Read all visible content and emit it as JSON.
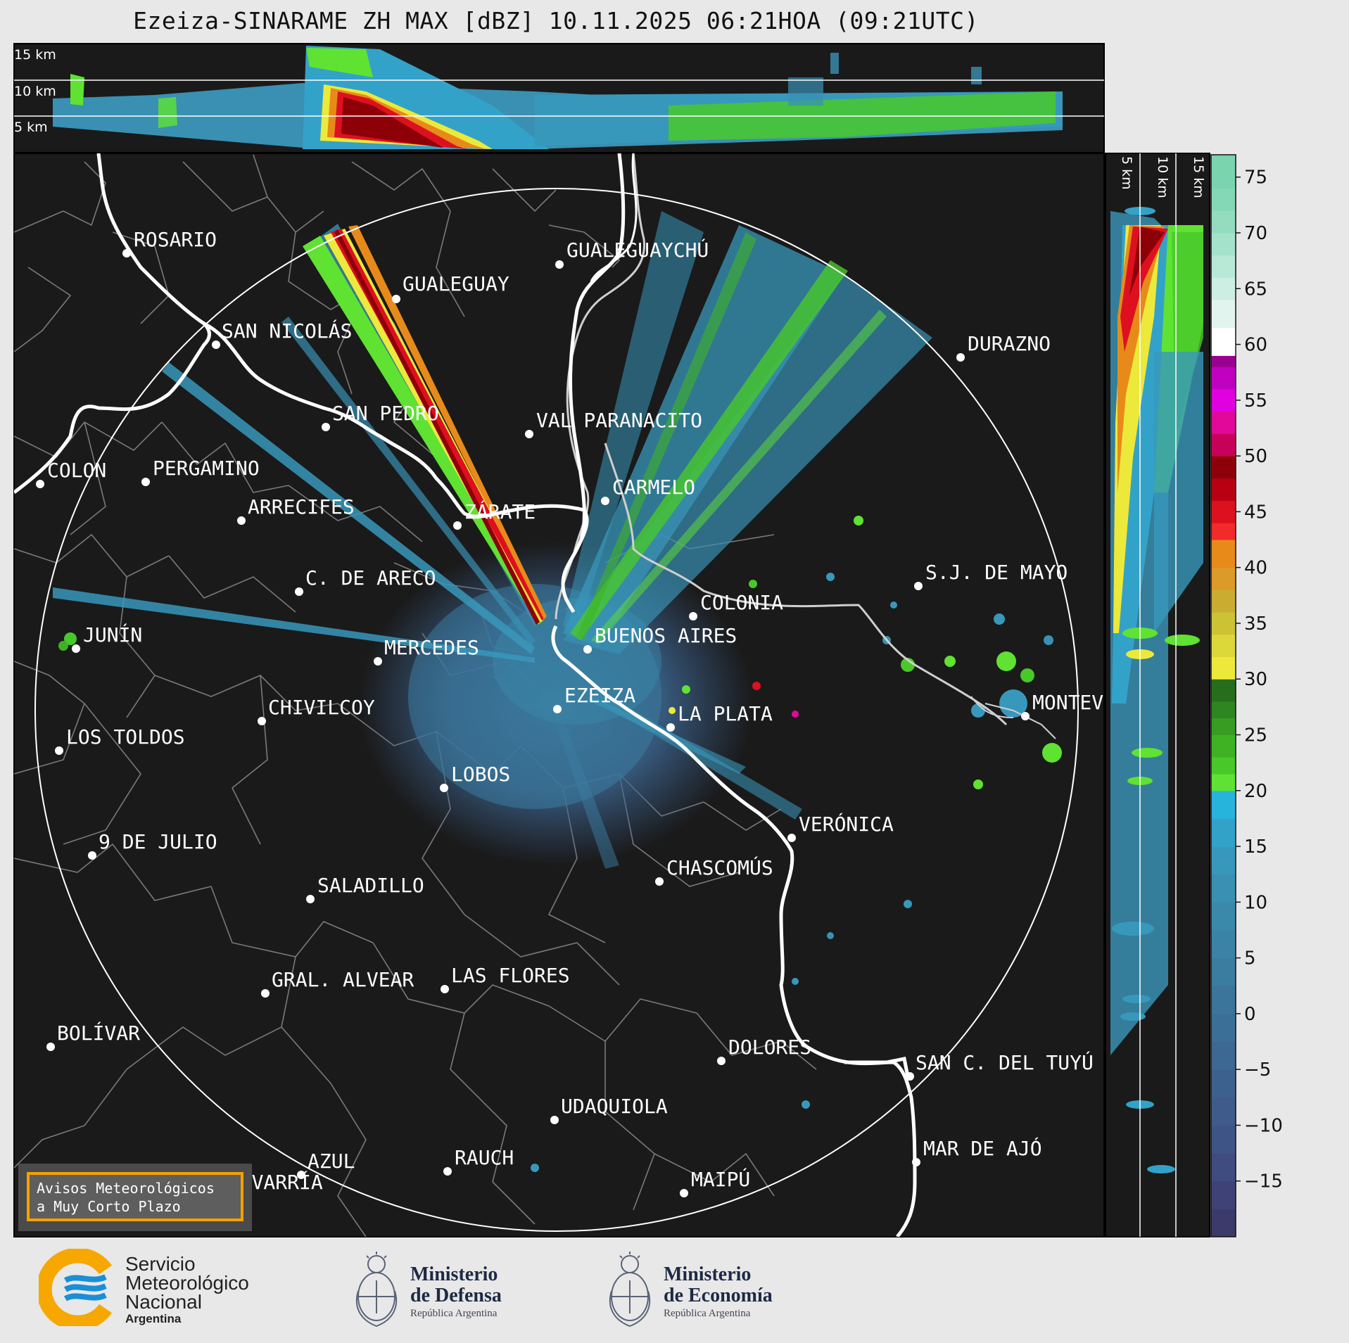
{
  "title": "Ezeiza-SINARAME ZH MAX [dBZ] 10.11.2025 06:21HOA (09:21UTC)",
  "map": {
    "cities": [
      {
        "name": "ROSARIO"
      },
      {
        "name": "GUALEGUAYCHÚ"
      },
      {
        "name": "GUALEGUAY"
      },
      {
        "name": "SAN NICOLÁS"
      },
      {
        "name": "DURAZNO"
      },
      {
        "name": "SAN PEDRO"
      },
      {
        "name": "VAL PARANACITO"
      },
      {
        "name": "COLON"
      },
      {
        "name": "PERGAMINO"
      },
      {
        "name": "CARMELO"
      },
      {
        "name": "ARRECIFES"
      },
      {
        "name": "ZÁRATE"
      },
      {
        "name": "C. DE ARECO"
      },
      {
        "name": "S.J. DE MAYO"
      },
      {
        "name": "COLONIA"
      },
      {
        "name": "JUNÍN"
      },
      {
        "name": "BUENOS AIRES"
      },
      {
        "name": "MERCEDES"
      },
      {
        "name": "EZEIZA"
      },
      {
        "name": "MONTEVIDEO"
      },
      {
        "name": "CHIVILCOY"
      },
      {
        "name": "LA PLATA"
      },
      {
        "name": "LOS TOLDOS"
      },
      {
        "name": "LOBOS"
      },
      {
        "name": "VERÓNICA"
      },
      {
        "name": "9 DE JULIO"
      },
      {
        "name": "CHASCOMÚS"
      },
      {
        "name": "SALADILLO"
      },
      {
        "name": "GRAL. ALVEAR"
      },
      {
        "name": "LAS FLORES"
      },
      {
        "name": "BOLÍVAR"
      },
      {
        "name": "DOLORES"
      },
      {
        "name": "SAN C. DEL TUYÚ"
      },
      {
        "name": "UDAQUIOLA"
      },
      {
        "name": "MAR DE AJÓ"
      },
      {
        "name": "AZUL"
      },
      {
        "name": "RAUCH"
      },
      {
        "name": "OLAVARRÍA"
      },
      {
        "name": "MAIPÚ"
      }
    ]
  },
  "top_profile": {
    "height_labels": [
      "15 km",
      "10 km",
      "5 km"
    ]
  },
  "side_profile": {
    "height_labels": [
      "5 km",
      "10 km",
      "15 km"
    ]
  },
  "colorbar": {
    "unit": "dBZ",
    "ticks": [
      "75",
      "70",
      "65",
      "60",
      "55",
      "50",
      "45",
      "40",
      "35",
      "30",
      "25",
      "20",
      "15",
      "10",
      "5",
      "0",
      "−5",
      "−10",
      "−15"
    ],
    "tick_values": [
      75,
      70,
      65,
      60,
      55,
      50,
      45,
      40,
      35,
      30,
      25,
      20,
      15,
      10,
      5,
      0,
      -5,
      -10,
      -15
    ],
    "range": [
      -20,
      77
    ],
    "colors": [
      {
        "from": -20,
        "to": -17.5,
        "color": "#3c3a6a"
      },
      {
        "from": -17.5,
        "to": -15,
        "color": "#3f4276"
      },
      {
        "from": -15,
        "to": -12.5,
        "color": "#404b80"
      },
      {
        "from": -12.5,
        "to": -10,
        "color": "#3f5486"
      },
      {
        "from": -10,
        "to": -7.5,
        "color": "#3e5b8b"
      },
      {
        "from": -7.5,
        "to": -5,
        "color": "#3d618f"
      },
      {
        "from": -5,
        "to": -2.5,
        "color": "#3d6893"
      },
      {
        "from": -2.5,
        "to": 0,
        "color": "#3c6f98"
      },
      {
        "from": 0,
        "to": 2.5,
        "color": "#3b759c"
      },
      {
        "from": 2.5,
        "to": 5,
        "color": "#3b7ca1"
      },
      {
        "from": 5,
        "to": 7.5,
        "color": "#3a82a6"
      },
      {
        "from": 7.5,
        "to": 10,
        "color": "#3a89ab"
      },
      {
        "from": 10,
        "to": 12.5,
        "color": "#3990b3"
      },
      {
        "from": 12.5,
        "to": 15,
        "color": "#3898bb"
      },
      {
        "from": 15,
        "to": 17.5,
        "color": "#33a2c9"
      },
      {
        "from": 17.5,
        "to": 20,
        "color": "#26b4dd"
      },
      {
        "from": 20,
        "to": 21.5,
        "color": "#5fe232"
      },
      {
        "from": 21.5,
        "to": 23,
        "color": "#49c82a"
      },
      {
        "from": 23,
        "to": 25,
        "color": "#3fb224"
      },
      {
        "from": 25,
        "to": 26.5,
        "color": "#379d22"
      },
      {
        "from": 26.5,
        "to": 28,
        "color": "#2f8520"
      },
      {
        "from": 28,
        "to": 30,
        "color": "#276e1c"
      },
      {
        "from": 30,
        "to": 32,
        "color": "#ece93a"
      },
      {
        "from": 32,
        "to": 34,
        "color": "#ddd83a"
      },
      {
        "from": 34,
        "to": 36,
        "color": "#ccc334"
      },
      {
        "from": 36,
        "to": 38,
        "color": "#c9ad30"
      },
      {
        "from": 38,
        "to": 40,
        "color": "#dc9a28"
      },
      {
        "from": 40,
        "to": 42.5,
        "color": "#e88a1a"
      },
      {
        "from": 42.5,
        "to": 44,
        "color": "#f22a2a"
      },
      {
        "from": 44,
        "to": 46,
        "color": "#dd1020"
      },
      {
        "from": 46,
        "to": 48,
        "color": "#b90012"
      },
      {
        "from": 48,
        "to": 50,
        "color": "#8e0008"
      },
      {
        "from": 50,
        "to": 52,
        "color": "#c8005a"
      },
      {
        "from": 52,
        "to": 54,
        "color": "#e2089a"
      },
      {
        "from": 54,
        "to": 56,
        "color": "#e000e0"
      },
      {
        "from": 56,
        "to": 58,
        "color": "#c000c0"
      },
      {
        "from": 58,
        "to": 59,
        "color": "#9a0090"
      },
      {
        "from": 59,
        "to": 61.5,
        "color": "#ffffff"
      },
      {
        "from": 61.5,
        "to": 64,
        "color": "#e2f4ee"
      },
      {
        "from": 64,
        "to": 66,
        "color": "#cdeee2"
      },
      {
        "from": 66,
        "to": 68,
        "color": "#b8e8d6"
      },
      {
        "from": 68,
        "to": 70,
        "color": "#a5e2cb"
      },
      {
        "from": 70,
        "to": 72,
        "color": "#93dcbf"
      },
      {
        "from": 72,
        "to": 74,
        "color": "#84d8b6"
      },
      {
        "from": 74,
        "to": 77,
        "color": "#7ad4ae"
      }
    ]
  },
  "warning_link": {
    "line1": "Avisos Meteorológicos",
    "line2": "a Muy Corto Plazo"
  },
  "logos": {
    "smn": {
      "line1": "Servicio",
      "line2": "Meteorológico",
      "line3": "Nacional",
      "line4": "Argentina"
    },
    "defensa": {
      "line1": "Ministerio",
      "line2": "de Defensa",
      "line3": "República Argentina"
    },
    "economia": {
      "line1": "Ministerio",
      "line2": "de Economía",
      "line3": "República Argentina"
    }
  },
  "colors": {
    "map_background": "#1a1a1a",
    "page_background": "#e8e8e8",
    "smn_blue": "#1a8fd6",
    "smn_orange": "#f7a800",
    "warning_border": "#f5a000"
  }
}
